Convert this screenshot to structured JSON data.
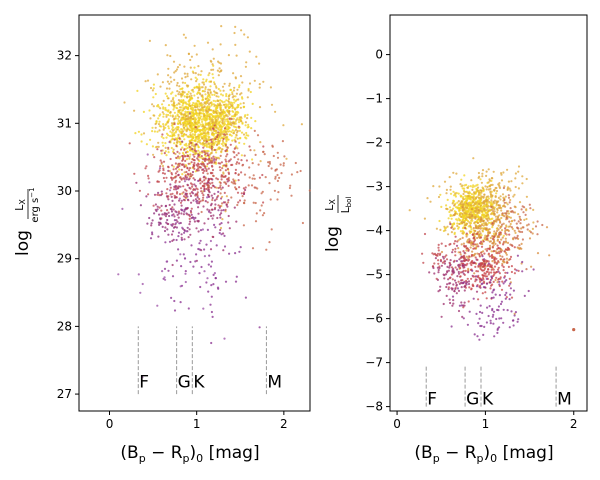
{
  "chart_data": [
    {
      "type": "scatter",
      "xlabel_main": "(B",
      "xlabel_sub1": "p",
      "xlabel_minus": " − R",
      "xlabel_sub2": "p",
      "xlabel_close": ")",
      "xlabel_sub3": "0",
      "xlabel_unit": " [mag]",
      "ylabel_log": "log",
      "ylabel_num": "L",
      "ylabel_num_sub": "X",
      "ylabel_den": "erg s",
      "ylabel_den_sup": "−1",
      "xlim": [
        -0.35,
        2.3
      ],
      "ylim": [
        26.75,
        32.6
      ],
      "xticks": [
        0,
        1,
        2
      ],
      "yticks": [
        27,
        28,
        29,
        30,
        31,
        32
      ],
      "grid": false,
      "spectral_classes": [
        {
          "label": "F",
          "x": 0.33
        },
        {
          "label": "G",
          "x": 0.77
        },
        {
          "label": "K",
          "x": 0.95
        },
        {
          "label": "M",
          "x": 1.8
        }
      ],
      "class_line_range": [
        27.0,
        28.0
      ],
      "class_label_y": 27.1,
      "clusters": [
        {
          "cx": 1.0,
          "cy": 31.0,
          "sx": 0.22,
          "sy": 0.28,
          "n": 950,
          "color": "#f2d322"
        },
        {
          "cx": 1.3,
          "cy": 31.05,
          "sx": 0.15,
          "sy": 0.25,
          "n": 220,
          "color": "#f2d322"
        },
        {
          "cx": 1.1,
          "cy": 31.2,
          "sx": 0.32,
          "sy": 0.5,
          "n": 420,
          "color": "#dfa83c"
        },
        {
          "cx": 1.0,
          "cy": 30.25,
          "sx": 0.28,
          "sy": 0.28,
          "n": 380,
          "color": "#c1474e"
        },
        {
          "cx": 1.6,
          "cy": 30.2,
          "sx": 0.3,
          "sy": 0.35,
          "n": 130,
          "color": "#c8664a"
        },
        {
          "cx": 0.95,
          "cy": 29.8,
          "sx": 0.25,
          "sy": 0.3,
          "n": 160,
          "color": "#9e2f6e"
        },
        {
          "cx": 0.7,
          "cy": 29.6,
          "sx": 0.15,
          "sy": 0.2,
          "n": 60,
          "color": "#8c2a7a"
        },
        {
          "cx": 1.05,
          "cy": 29.0,
          "sx": 0.25,
          "sy": 0.45,
          "n": 90,
          "color": "#8a2f8f"
        },
        {
          "cx": 0.75,
          "cy": 29.3,
          "sx": 0.35,
          "sy": 0.6,
          "n": 40,
          "color": "#9c4fa6"
        }
      ]
    },
    {
      "type": "scatter",
      "xlabel_main": "(B",
      "xlabel_sub1": "p",
      "xlabel_minus": " − R",
      "xlabel_sub2": "p",
      "xlabel_close": ")",
      "xlabel_sub3": "0",
      "xlabel_unit": " [mag]",
      "ylabel_log": "log",
      "ylabel_num": "L",
      "ylabel_num_sub": "X",
      "ylabel_den": "L",
      "ylabel_den_sub": "bol",
      "xlim": [
        -0.08,
        2.15
      ],
      "ylim": [
        -8.1,
        0.9
      ],
      "xticks": [
        0,
        1,
        2
      ],
      "yticks": [
        -8,
        -7,
        -6,
        -5,
        -4,
        -3,
        -2,
        -1,
        0
      ],
      "grid": false,
      "spectral_classes": [
        {
          "label": "F",
          "x": 0.33
        },
        {
          "label": "G",
          "x": 0.77
        },
        {
          "label": "K",
          "x": 0.95
        },
        {
          "label": "M",
          "x": 1.8
        }
      ],
      "class_line_range": [
        -8.0,
        -7.05
      ],
      "class_label_y": -7.95,
      "clusters": [
        {
          "cx": 0.85,
          "cy": -3.55,
          "sx": 0.13,
          "sy": 0.28,
          "n": 520,
          "color": "#f2d322"
        },
        {
          "cx": 1.0,
          "cy": -3.5,
          "sx": 0.22,
          "sy": 0.45,
          "n": 380,
          "color": "#dfa83c"
        },
        {
          "cx": 1.05,
          "cy": -4.2,
          "sx": 0.2,
          "sy": 0.35,
          "n": 220,
          "color": "#d88c3e"
        },
        {
          "cx": 1.0,
          "cy": -4.8,
          "sx": 0.15,
          "sy": 0.35,
          "n": 260,
          "color": "#c8464a"
        },
        {
          "cx": 0.65,
          "cy": -5.1,
          "sx": 0.12,
          "sy": 0.35,
          "n": 120,
          "color": "#9e2f6e"
        },
        {
          "cx": 1.1,
          "cy": -5.6,
          "sx": 0.2,
          "sy": 0.45,
          "n": 110,
          "color": "#8a2f8f"
        },
        {
          "cx": 1.35,
          "cy": -3.8,
          "sx": 0.15,
          "sy": 0.35,
          "n": 60,
          "color": "#c8664a"
        },
        {
          "cx": 0.6,
          "cy": -4.5,
          "sx": 0.15,
          "sy": 0.3,
          "n": 60,
          "color": "#c1474e"
        }
      ],
      "extra_points": [
        {
          "x": 2.0,
          "y": -6.25,
          "color": "#c8664a"
        }
      ]
    }
  ]
}
